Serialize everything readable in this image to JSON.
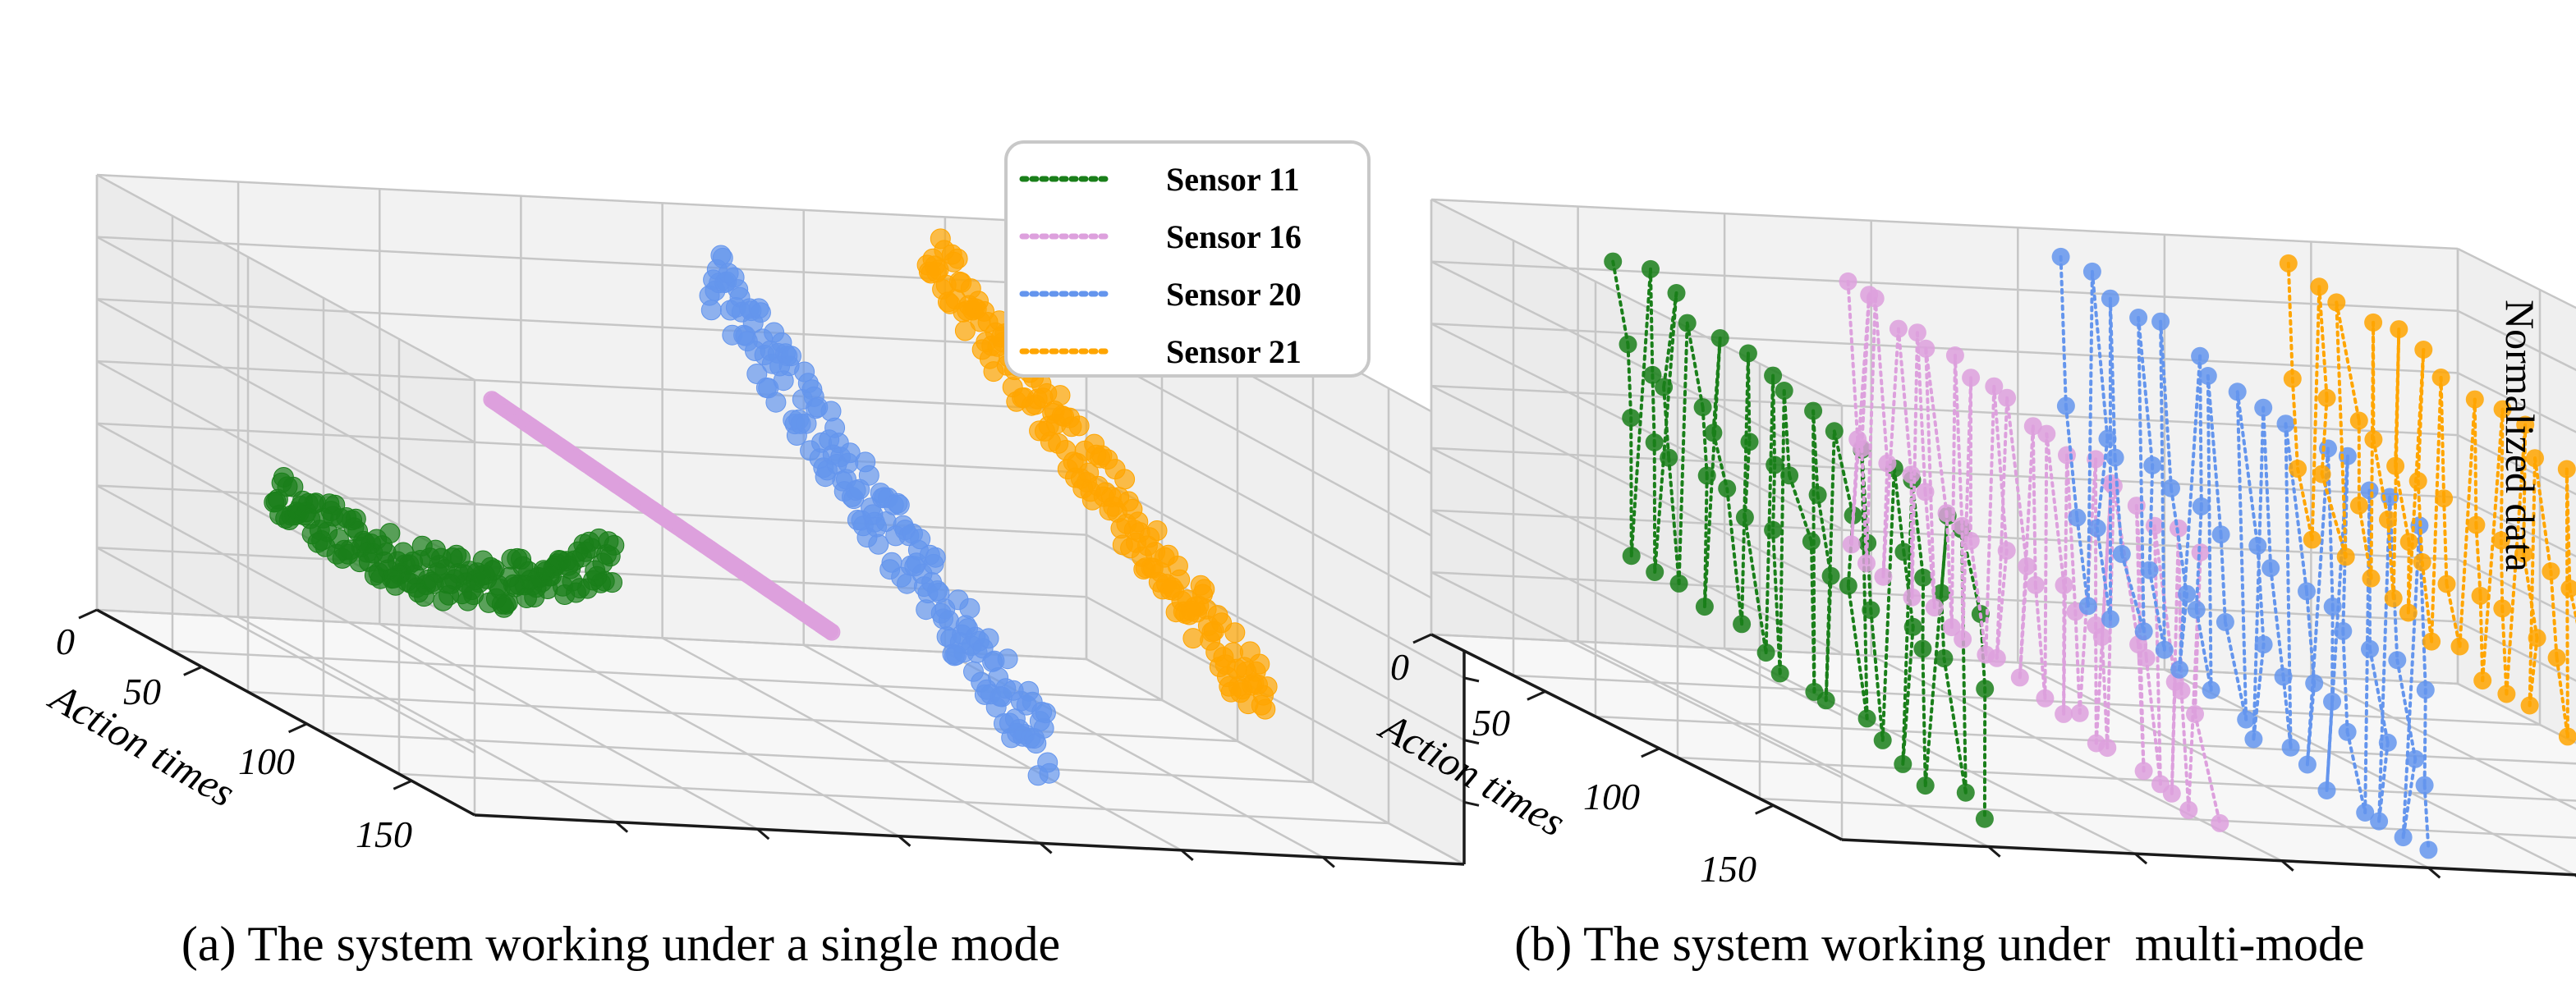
{
  "figure": {
    "legend": {
      "placement": "upper-right of panel (a)",
      "entries": [
        {
          "label": "Sensor 11",
          "color": "#1a7f1a"
        },
        {
          "label": "Sensor 16",
          "color": "#dda0dd"
        },
        {
          "label": "Sensor 20",
          "color": "#6495ed"
        },
        {
          "label": "Sensor 21",
          "color": "#ffa500"
        }
      ]
    }
  },
  "chart_data": [
    {
      "type": "scatter3d",
      "title": "(a) The system working under a single mode",
      "xlabel": "Action times",
      "ylabel": "",
      "zlabel": "",
      "xlim": [
        0,
        180
      ],
      "x_ticks": [
        0,
        50,
        100,
        150
      ],
      "x_tick_labels": [
        "0",
        "50",
        "100",
        "150"
      ],
      "zlim": [
        0,
        1
      ],
      "grid": true,
      "series": [
        {
          "name": "Sensor 11",
          "color": "#1a7f1a",
          "depth": 0,
          "n": 180,
          "start": 0.32,
          "end": 0.58,
          "curve": -0.12,
          "noise": 0.06,
          "seed": 11
        },
        {
          "name": "Sensor 16",
          "color": "#dda0dd",
          "depth": 1,
          "n": 180,
          "start": 0.55,
          "end": 0.44,
          "curve": 0.0,
          "noise": 0.0,
          "seed": 16
        },
        {
          "name": "Sensor 20",
          "color": "#6495ed",
          "depth": 2,
          "n": 180,
          "start": 0.86,
          "end": 0.18,
          "curve": 0.0,
          "noise": 0.09,
          "seed": 20
        },
        {
          "name": "Sensor 21",
          "color": "#ffa500",
          "depth": 3,
          "n": 180,
          "start": 0.95,
          "end": 0.32,
          "curve": 0.0,
          "noise": 0.08,
          "seed": 21
        }
      ]
    },
    {
      "type": "scatter3d",
      "title": "(b) The system working under  multi-mode",
      "xlabel": "Action times",
      "ylabel": "",
      "zlabel": "Normalized data",
      "xlim": [
        0,
        180
      ],
      "x_ticks": [
        0,
        50,
        100,
        150
      ],
      "x_tick_labels": [
        "0",
        "50",
        "100",
        "150"
      ],
      "zlim": [
        0,
        1
      ],
      "grid": true,
      "series": [
        {
          "name": "Sensor 11",
          "color": "#1a7f1a",
          "depth": 0,
          "n": 60,
          "levels": [
            0.92,
            0.72,
            0.58,
            0.28
          ],
          "seed": 111
        },
        {
          "name": "Sensor 16",
          "color": "#dda0dd",
          "depth": 1,
          "n": 60,
          "levels": [
            0.9,
            0.55,
            0.3
          ],
          "seed": 116
        },
        {
          "name": "Sensor 20",
          "color": "#6495ed",
          "depth": 2,
          "n": 60,
          "levels": [
            0.98,
            0.62,
            0.4,
            0.22
          ],
          "seed": 120
        },
        {
          "name": "Sensor 21",
          "color": "#ffa500",
          "depth": 3,
          "n": 60,
          "levels": [
            0.99,
            0.72,
            0.55,
            0.38
          ],
          "seed": 121
        }
      ]
    }
  ]
}
